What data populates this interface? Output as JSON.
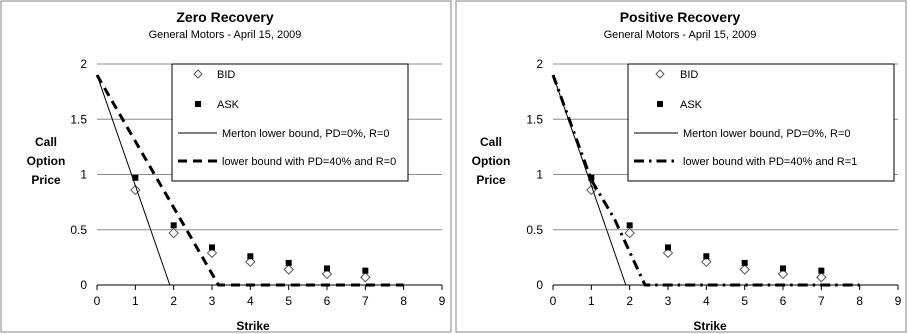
{
  "chart_data": [
    {
      "type": "scatter",
      "title": "Zero Recovery",
      "subtitle": "General Motors - April 15, 2009",
      "xlabel": "Strike",
      "ylabel": [
        "Call",
        "Option",
        "Price"
      ],
      "xlim": [
        0,
        9
      ],
      "ylim": [
        0,
        2
      ],
      "xticks": [
        "0",
        "1",
        "2",
        "3",
        "4",
        "5",
        "6",
        "7",
        "8",
        "9"
      ],
      "yticks": [
        "0",
        "0.5",
        "1",
        "1.5",
        "2"
      ],
      "grid": "horizontal",
      "legend_position": "top-right",
      "series": [
        {
          "name": "BID",
          "style": "open-diamond",
          "x": [
            1,
            2,
            3,
            4,
            5,
            6,
            7
          ],
          "y": [
            0.86,
            0.47,
            0.29,
            0.21,
            0.14,
            0.1,
            0.07
          ]
        },
        {
          "name": "ASK",
          "style": "filled-square",
          "x": [
            1,
            2,
            3,
            4,
            5,
            6,
            7
          ],
          "y": [
            0.97,
            0.54,
            0.34,
            0.26,
            0.2,
            0.15,
            0.13
          ]
        },
        {
          "name": "Merton lower bound, PD=0%, R=0",
          "style": "thin-solid",
          "x": [
            0,
            1.9,
            8
          ],
          "y": [
            1.9,
            0,
            0
          ]
        },
        {
          "name": "lower bound with PD=40% and R=0",
          "style": "thick-dash",
          "x": [
            0,
            3.17,
            8
          ],
          "y": [
            1.9,
            0,
            0
          ]
        }
      ]
    },
    {
      "type": "scatter",
      "title": "Positive Recovery",
      "subtitle": "General Motors - April 15, 2009",
      "xlabel": "Strike",
      "ylabel": [
        "Call",
        "Option",
        "Price"
      ],
      "xlim": [
        0,
        9
      ],
      "ylim": [
        0,
        2
      ],
      "xticks": [
        "0",
        "1",
        "2",
        "3",
        "4",
        "5",
        "6",
        "7",
        "8",
        "9"
      ],
      "yticks": [
        "0",
        "0.5",
        "1",
        "1.5",
        "2"
      ],
      "grid": "horizontal",
      "legend_position": "top-right",
      "series": [
        {
          "name": "BID",
          "style": "open-diamond",
          "x": [
            1,
            2,
            3,
            4,
            5,
            6,
            7
          ],
          "y": [
            0.86,
            0.47,
            0.29,
            0.21,
            0.14,
            0.1,
            0.07
          ]
        },
        {
          "name": "ASK",
          "style": "filled-square",
          "x": [
            1,
            2,
            3,
            4,
            5,
            6,
            7
          ],
          "y": [
            0.97,
            0.54,
            0.34,
            0.26,
            0.2,
            0.15,
            0.13
          ]
        },
        {
          "name": "Merton lower bound, PD=0%, R=0",
          "style": "thin-solid",
          "x": [
            0,
            1.9,
            8
          ],
          "y": [
            1.9,
            0,
            0
          ]
        },
        {
          "name": "lower bound with PD=40% and R=1",
          "style": "dash-dot",
          "x": [
            0,
            1,
            1.6,
            2.4,
            8
          ],
          "y": [
            1.9,
            0.95,
            0.6,
            0,
            0
          ]
        }
      ]
    }
  ]
}
